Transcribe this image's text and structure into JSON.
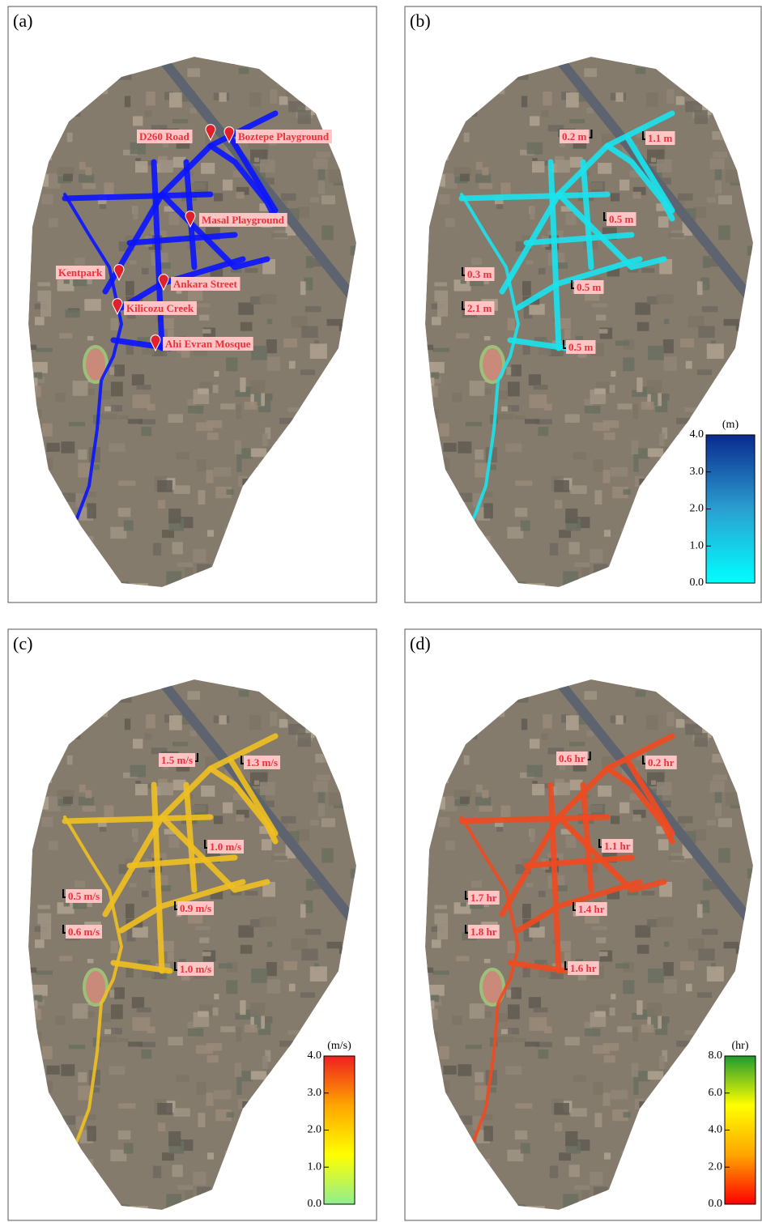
{
  "panels": [
    {
      "label": "(a)",
      "flood_color": "#0a14ff",
      "annotations": [
        "D260 Road",
        "Boztepe Playground",
        "Masal Playground",
        "Kentpark",
        "Ankara Street",
        "Kilicozu Creek",
        "Ahi Evran Mosque"
      ]
    },
    {
      "label": "(b)",
      "flood_color": "#19e3ee",
      "annotations": [
        "0.2 m",
        "1.1 m",
        "0.5 m",
        "0.3 m",
        "0.5 m",
        "2.1 m",
        "0.5 m"
      ],
      "colorbar": {
        "unit": "(m)",
        "lim": [
          0,
          4
        ],
        "ticks": [
          {
            "value": 0,
            "label": "0.0"
          },
          {
            "value": 1,
            "label": "1.0"
          },
          {
            "value": 2,
            "label": "2.0"
          },
          {
            "value": 3,
            "label": "3.0"
          },
          {
            "value": 4,
            "label": "4.0"
          }
        ],
        "colors": [
          "#00ffff",
          "#2a9fd0",
          "#0a2a8f"
        ]
      }
    },
    {
      "label": "(c)",
      "flood_color": "#f0c020",
      "annotations": [
        "1.5 m/s",
        "1.3 m/s",
        "1.0 m/s",
        "0.5 m/s",
        "0.9 m/s",
        "0.6 m/s",
        "1.0 m/s"
      ],
      "colorbar": {
        "unit": "(m/s)",
        "lim": [
          0,
          4
        ],
        "ticks": [
          {
            "value": 0,
            "label": "0.0"
          },
          {
            "value": 1,
            "label": "1.0"
          },
          {
            "value": 2,
            "label": "2.0"
          },
          {
            "value": 3,
            "label": "3.0"
          },
          {
            "value": 4,
            "label": "4.0"
          }
        ],
        "colors": [
          "#90ee90",
          "#ffff00",
          "#ffa500",
          "#ee2020"
        ]
      }
    },
    {
      "label": "(d)",
      "flood_color": "#f04a20",
      "annotations": [
        "0.6 hr",
        "0.2 hr",
        "1.1 hr",
        "1.7 hr",
        "1.4 hr",
        "1.8 hr",
        "1.6 hr"
      ],
      "colorbar": {
        "unit": "(hr)",
        "lim": [
          0,
          8
        ],
        "ticks": [
          {
            "value": 0,
            "label": "0.0"
          },
          {
            "value": 2,
            "label": "2.0"
          },
          {
            "value": 4,
            "label": "4.0"
          },
          {
            "value": 6,
            "label": "6.0"
          },
          {
            "value": 8,
            "label": "8.0"
          }
        ],
        "colors": [
          "#ff0000",
          "#ffa500",
          "#ffff00",
          "#1e9a2e"
        ]
      }
    }
  ]
}
